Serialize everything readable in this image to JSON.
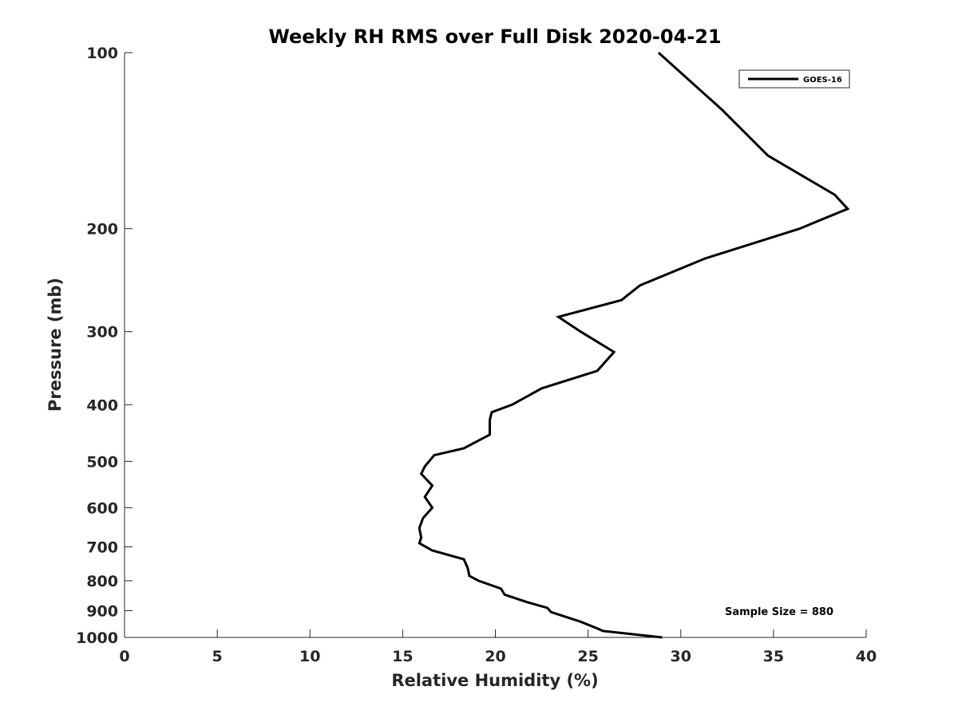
{
  "chart_data": {
    "type": "line",
    "title": "Weekly RH RMS over Full Disk 2020-04-21",
    "xlabel": "Relative Humidity (%)",
    "ylabel": "Pressure (mb)",
    "xlim": [
      0,
      40
    ],
    "ylim": [
      100,
      1000
    ],
    "y_scale": "log",
    "y_reversed": true,
    "x_ticks": [
      "0",
      "5",
      "10",
      "15",
      "20",
      "25",
      "30",
      "35",
      "40"
    ],
    "y_ticks": [
      "100",
      "200",
      "300",
      "400",
      "500",
      "600",
      "700",
      "800",
      "900",
      "1000"
    ],
    "grid": false,
    "legend_position": "top-right",
    "annotation": "Sample Size = 880",
    "series": [
      {
        "name": "GOES-16",
        "color": "#000000",
        "points": [
          [
            28.8,
            100
          ],
          [
            32.2,
            125
          ],
          [
            34.7,
            150
          ],
          [
            38.3,
            175
          ],
          [
            39.0,
            185
          ],
          [
            36.4,
            200
          ],
          [
            31.3,
            225
          ],
          [
            27.8,
            250
          ],
          [
            26.8,
            265
          ],
          [
            23.4,
            283
          ],
          [
            24.6,
            300
          ],
          [
            26.4,
            325
          ],
          [
            25.5,
            350
          ],
          [
            22.5,
            375
          ],
          [
            20.9,
            400
          ],
          [
            19.8,
            412
          ],
          [
            19.7,
            425
          ],
          [
            19.7,
            450
          ],
          [
            18.3,
            475
          ],
          [
            16.7,
            488
          ],
          [
            16.2,
            510
          ],
          [
            16.0,
            525
          ],
          [
            16.6,
            550
          ],
          [
            16.2,
            575
          ],
          [
            16.6,
            600
          ],
          [
            16.1,
            625
          ],
          [
            15.9,
            650
          ],
          [
            16.0,
            675
          ],
          [
            15.9,
            690
          ],
          [
            16.6,
            710
          ],
          [
            18.3,
            735
          ],
          [
            18.5,
            760
          ],
          [
            18.6,
            785
          ],
          [
            19.1,
            800
          ],
          [
            20.3,
            825
          ],
          [
            20.5,
            845
          ],
          [
            21.7,
            870
          ],
          [
            22.8,
            890
          ],
          [
            23.0,
            905
          ],
          [
            24.6,
            940
          ],
          [
            25.5,
            965
          ],
          [
            25.8,
            975
          ],
          [
            29.0,
            1000
          ]
        ]
      }
    ]
  }
}
